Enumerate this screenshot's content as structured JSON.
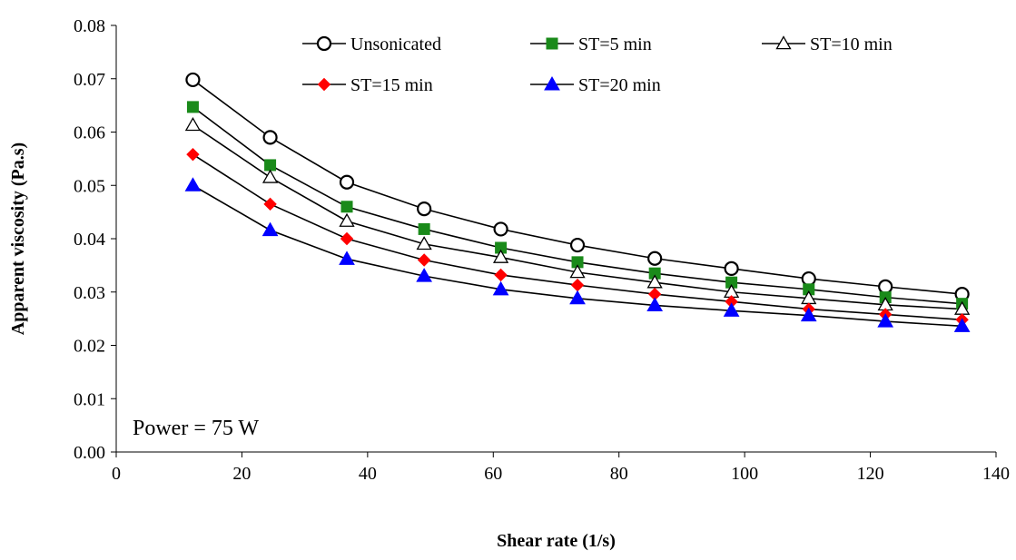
{
  "chart_data": {
    "type": "line",
    "title": "",
    "xlabel": "Shear rate (1/s)",
    "ylabel": "Apparent viscosity (Pa.s)",
    "xlim": [
      0,
      140
    ],
    "ylim": [
      0.0,
      0.08
    ],
    "x_ticks": [
      0,
      20,
      40,
      60,
      80,
      100,
      120,
      140
    ],
    "x_tick_labels": [
      "0",
      "20",
      "40",
      "60",
      "80",
      "100",
      "120",
      "140"
    ],
    "y_ticks": [
      0.0,
      0.01,
      0.02,
      0.03,
      0.04,
      0.05,
      0.06,
      0.07,
      0.08
    ],
    "y_tick_labels": [
      "0.00",
      "0.01",
      "0.02",
      "0.03",
      "0.04",
      "0.05",
      "0.06",
      "0.07",
      "0.08"
    ],
    "grid": false,
    "legend_position": "top-right",
    "annotation": "Power = 75 W",
    "x": [
      12.2,
      24.5,
      36.7,
      49.0,
      61.2,
      73.4,
      85.7,
      97.9,
      110.2,
      122.4,
      134.6
    ],
    "series": [
      {
        "name": "Unsonicated",
        "color": "#000000",
        "marker": "circle-open",
        "values": [
          0.0698,
          0.059,
          0.0506,
          0.0456,
          0.0418,
          0.0388,
          0.0363,
          0.0344,
          0.0325,
          0.031,
          0.0296
        ]
      },
      {
        "name": "ST=5 min",
        "color": "#1a8a1a",
        "marker": "square-filled",
        "values": [
          0.0647,
          0.0538,
          0.046,
          0.0418,
          0.0383,
          0.0356,
          0.0335,
          0.0318,
          0.0305,
          0.029,
          0.0278
        ]
      },
      {
        "name": "ST=10 min",
        "color": "#000000",
        "marker": "triangle-open",
        "values": [
          0.0613,
          0.0515,
          0.0433,
          0.039,
          0.0365,
          0.0337,
          0.0318,
          0.03,
          0.0288,
          0.0276,
          0.0268
        ]
      },
      {
        "name": "ST=15 min",
        "color": "#ff0000",
        "marker": "diamond-filled",
        "values": [
          0.0558,
          0.0465,
          0.04,
          0.036,
          0.0332,
          0.0313,
          0.0296,
          0.0282,
          0.0268,
          0.0258,
          0.0248
        ]
      },
      {
        "name": "ST=20 min",
        "color": "#0000ff",
        "marker": "triangle-filled",
        "values": [
          0.05,
          0.0416,
          0.0362,
          0.033,
          0.0305,
          0.0288,
          0.0275,
          0.0265,
          0.0256,
          0.0245,
          0.0236
        ]
      }
    ]
  }
}
